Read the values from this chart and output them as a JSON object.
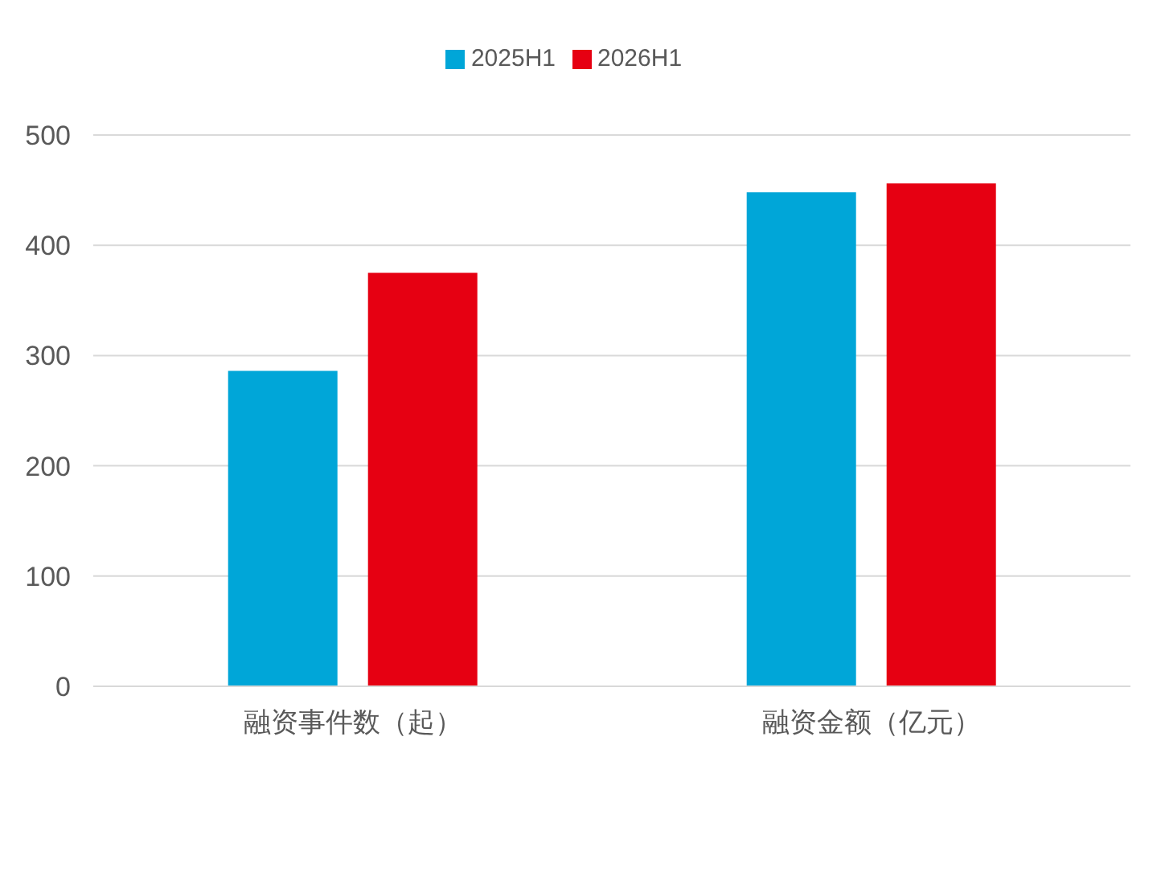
{
  "chart_data": {
    "type": "bar",
    "categories": [
      "融资事件数（起）",
      "融资金额（亿元）"
    ],
    "series": [
      {
        "name": "2025H1",
        "color": "#00a6d8",
        "values": [
          286,
          448
        ]
      },
      {
        "name": "2026H1",
        "color": "#e60012",
        "values": [
          375,
          456
        ]
      }
    ],
    "ylim": [
      0,
      500
    ],
    "yticks": [
      0,
      100,
      200,
      300,
      400,
      500
    ],
    "grid": "y",
    "legend": "top"
  }
}
